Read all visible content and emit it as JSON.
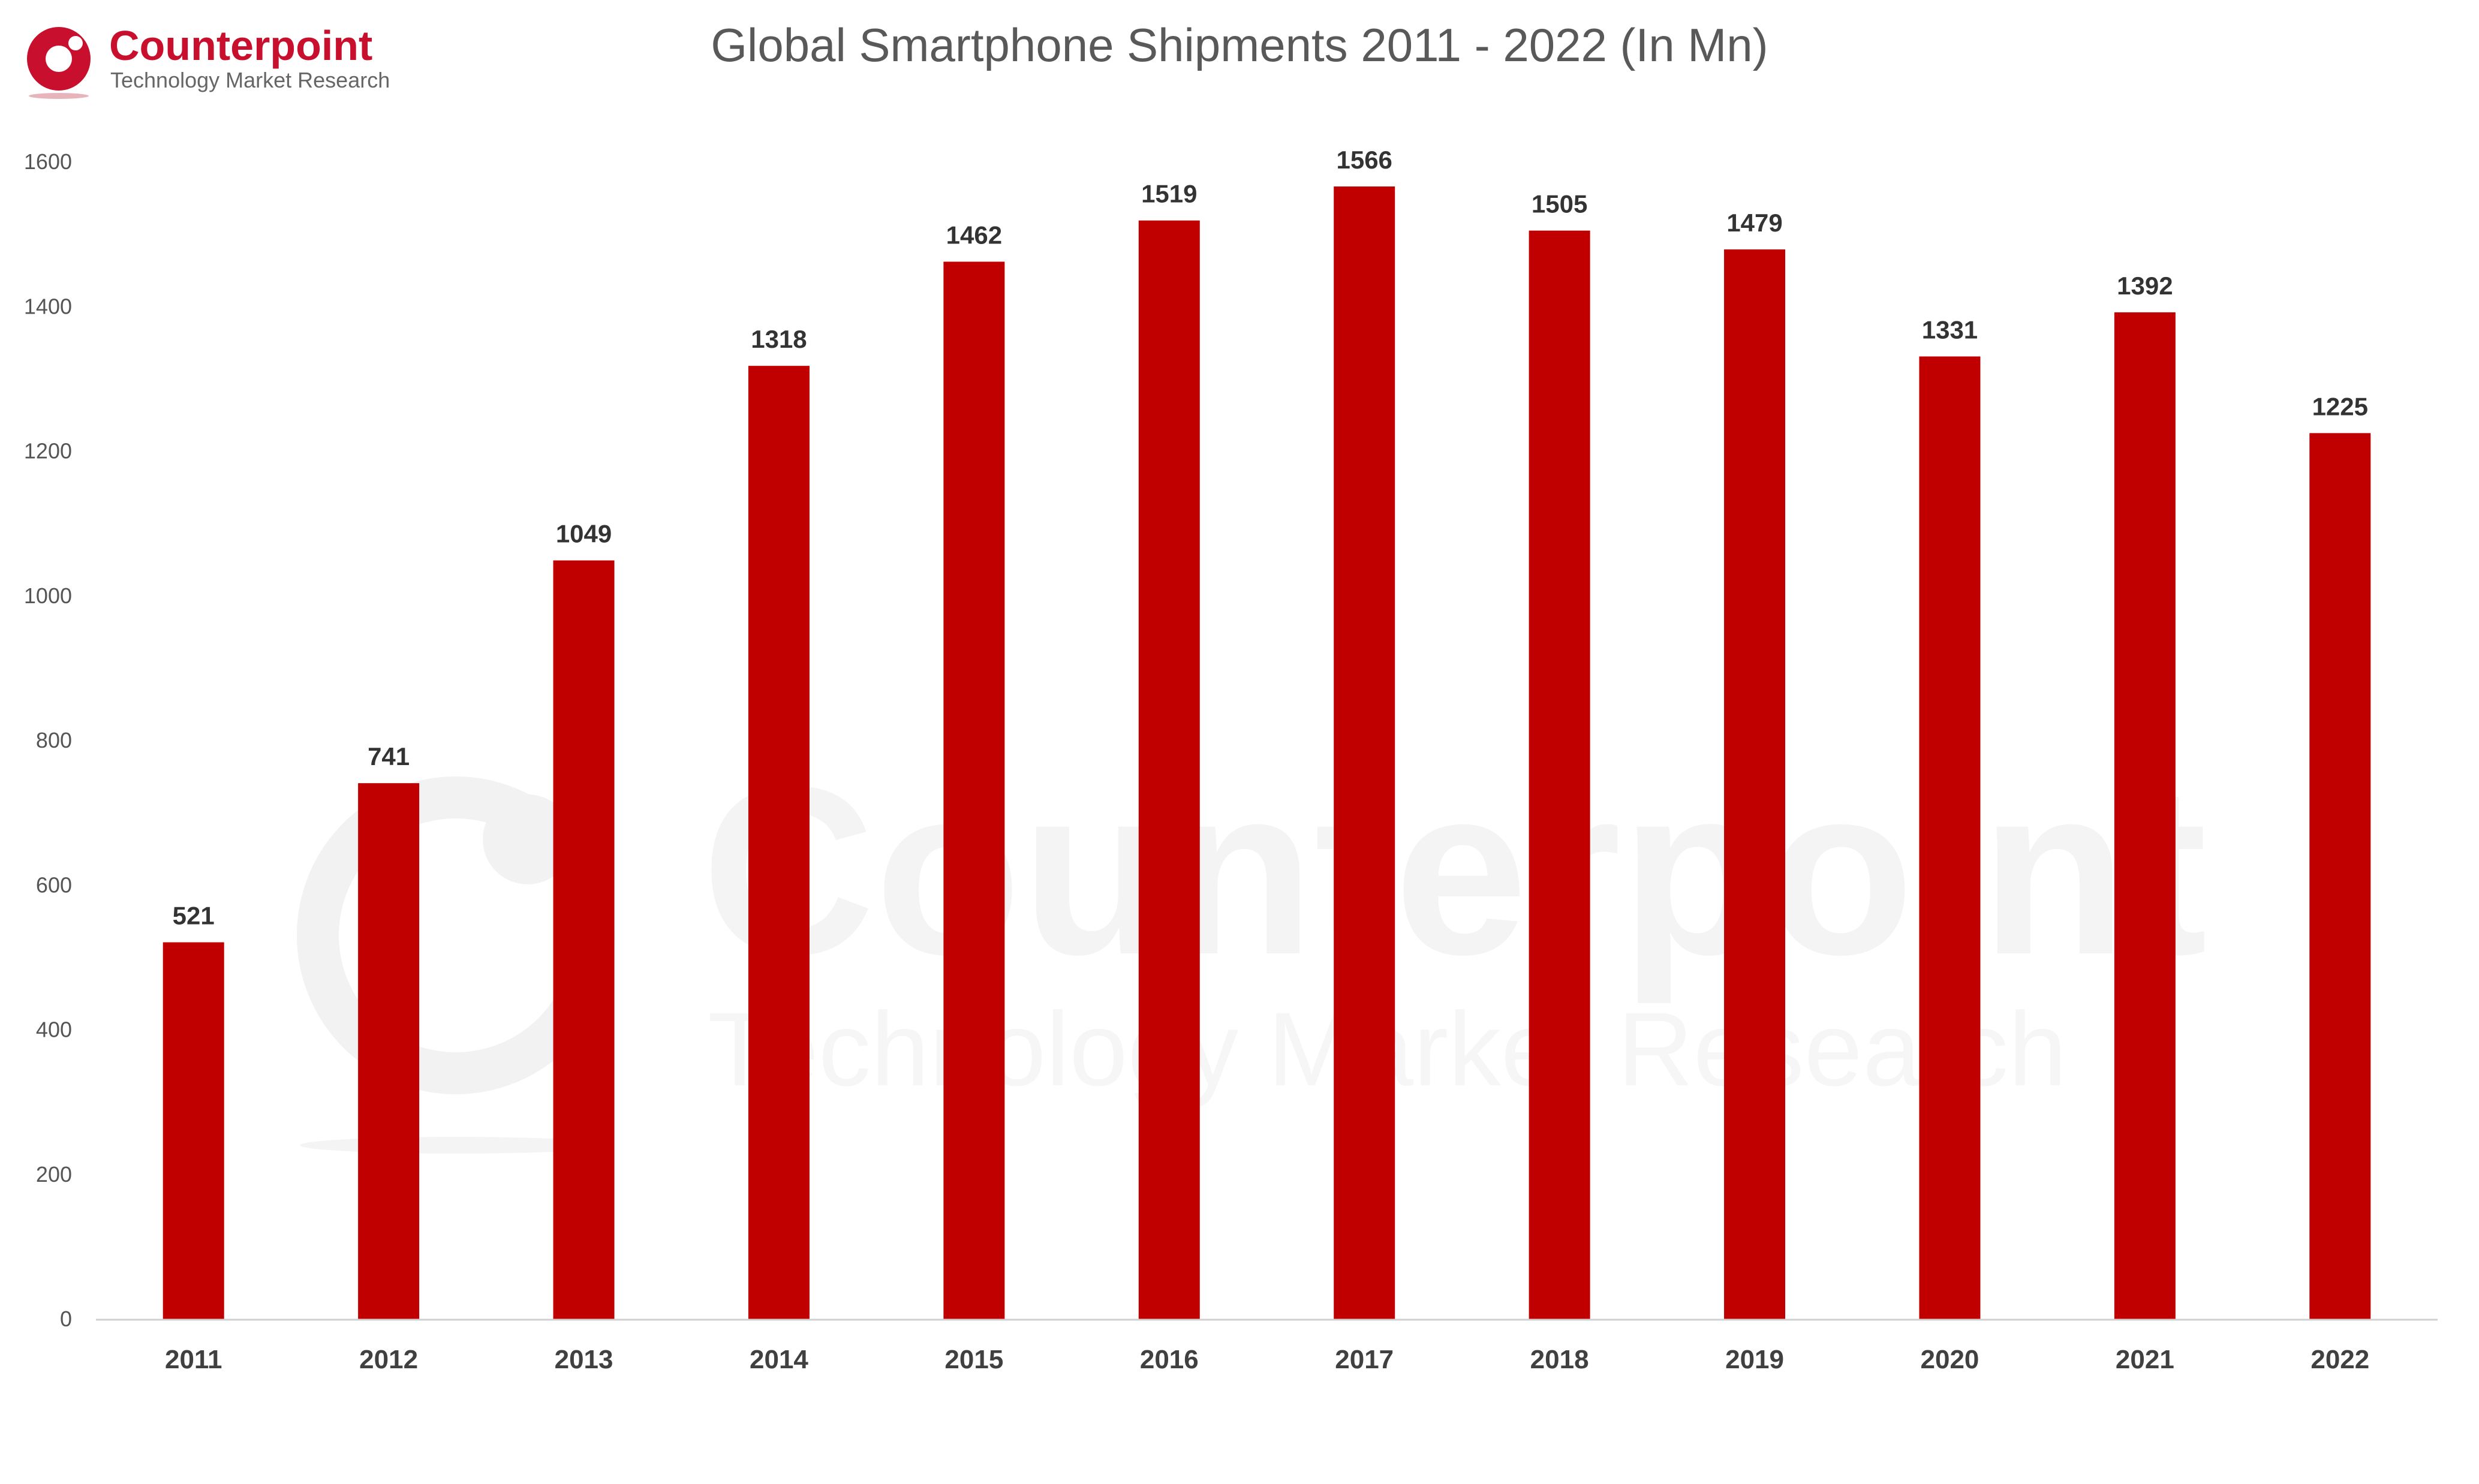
{
  "brand": {
    "name": "Counterpoint",
    "tagline": "Technology Market Research",
    "color": "#c8102e"
  },
  "chart_data": {
    "type": "bar",
    "title": "Global Smartphone Shipments 2011 - 2022 (In Mn)",
    "categories": [
      "2011",
      "2012",
      "2013",
      "2014",
      "2015",
      "2016",
      "2017",
      "2018",
      "2019",
      "2020",
      "2021",
      "2022"
    ],
    "values": [
      521,
      741,
      1049,
      1318,
      1462,
      1519,
      1566,
      1505,
      1479,
      1331,
      1392,
      1225
    ],
    "ylim": [
      0,
      1600
    ],
    "yticks": [
      "0",
      "200",
      "400",
      "600",
      "800",
      "1000",
      "1200",
      "1400",
      "1600"
    ],
    "grid": false,
    "legend": "none",
    "bar_color": "#c00000"
  }
}
